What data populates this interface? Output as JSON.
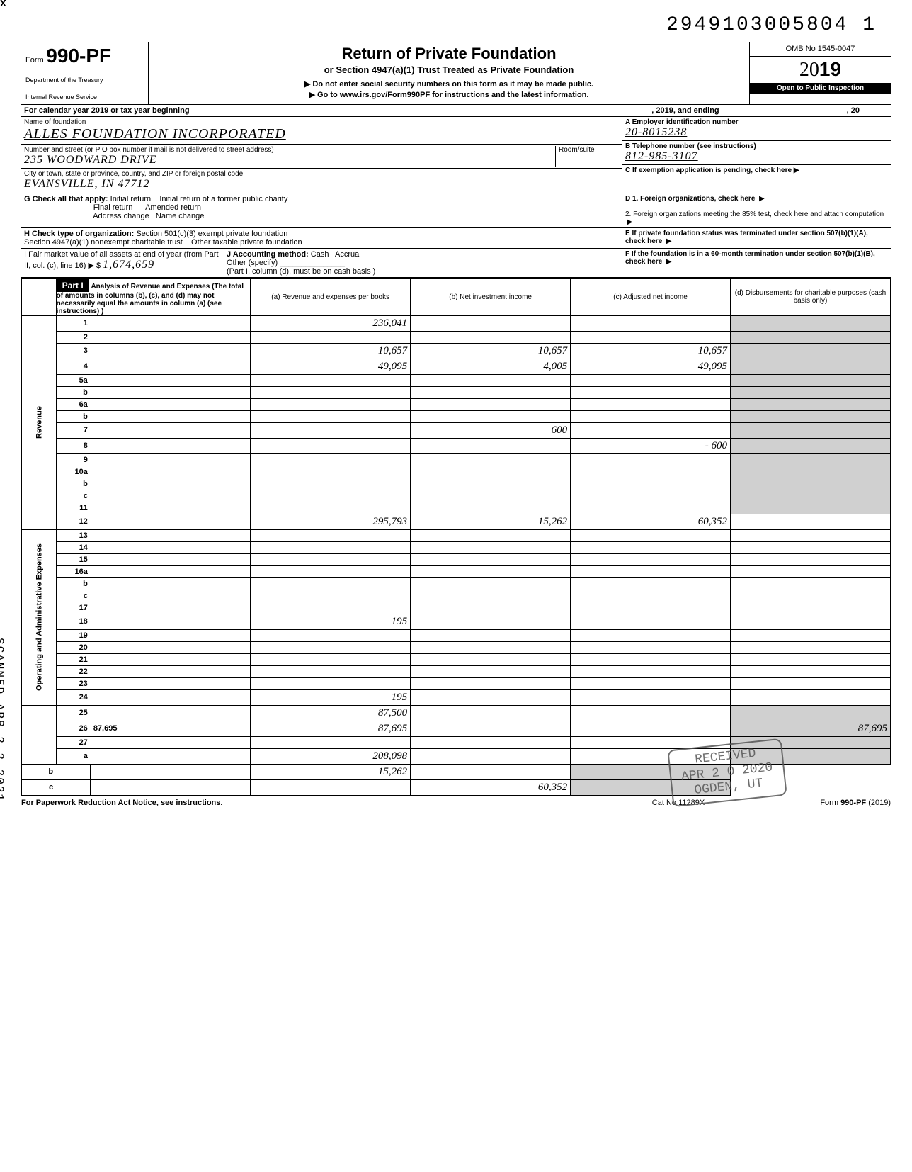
{
  "top_id": "2949103005804  1",
  "form": {
    "prefix": "Form",
    "number": "990-PF",
    "dept1": "Department of the Treasury",
    "dept2": "Internal Revenue Service"
  },
  "title": {
    "main": "Return of Private Foundation",
    "sub": "or Section 4947(a)(1) Trust Treated as Private Foundation",
    "instr1": "▶ Do not enter social security numbers on this form as it may be made public.",
    "instr2": "▶ Go to www.irs.gov/Form990PF for instructions and the latest information."
  },
  "right_head": {
    "omb": "OMB No 1545-0047",
    "year_prefix": "20",
    "year_bold": "19",
    "inspect": "Open to Public Inspection"
  },
  "cal": {
    "left": "For calendar year 2019 or tax year beginning",
    "mid": ", 2019, and ending",
    "right": ", 20"
  },
  "foundation": {
    "name_label": "Name of foundation",
    "name": "ALLES FOUNDATION INCORPORATED",
    "addr_label": "Number and street (or P O  box number if mail is not delivered to street address)",
    "room_label": "Room/suite",
    "addr": "235 WOODWARD DRIVE",
    "city_label": "City or town, state or province, country, and ZIP or foreign postal code",
    "city": "EVANSVILLE, IN  47712"
  },
  "boxA": {
    "label": "A  Employer identification number",
    "val": "20-8015238"
  },
  "boxB": {
    "label": "B  Telephone number (see instructions)",
    "val": "812-985-3107"
  },
  "boxC": {
    "label": "C  If exemption application is pending, check here ▶"
  },
  "boxD": {
    "d1": "D  1. Foreign organizations, check here",
    "d2": "2. Foreign organizations meeting the 85% test, check here and attach computation"
  },
  "boxE": {
    "label": "E  If private foundation status was terminated under section 507(b)(1)(A), check here"
  },
  "boxF": {
    "label": "F  If the foundation is in a 60-month termination under section 507(b)(1)(B), check here"
  },
  "rowG": {
    "label": "G  Check all that apply:",
    "opts": [
      "Initial return",
      "Initial return of a former public charity",
      "Final return",
      "Amended return",
      "Address change",
      "Name change"
    ]
  },
  "rowH": {
    "label": "H  Check type of organization:",
    "opt1": "Section 501(c)(3) exempt private foundation",
    "opt2": "Section 4947(a)(1) nonexempt charitable trust",
    "opt3": "Other taxable private foundation"
  },
  "rowI": {
    "l1": "I    Fair market value of all assets at end of year  (from Part II, col. (c), line 16) ▶  $",
    "val": "1,674,659",
    "j": "J   Accounting method:",
    "cash": "Cash",
    "accrual": "Accrual",
    "other": "Other (specify)",
    "note": "(Part I, column (d), must be on cash basis )"
  },
  "part1": {
    "label": "Part I",
    "head": "Analysis of Revenue and Expenses (The total of amounts in columns (b), (c), and (d) may not necessarily equal the amounts in column (a) (see instructions) )",
    "col_a": "(a) Revenue and expenses per books",
    "col_b": "(b) Net investment income",
    "col_c": "(c) Adjusted net income",
    "col_d": "(d) Disbursements for charitable purposes (cash basis only)"
  },
  "sections": {
    "revenue": "Revenue",
    "expenses": "Operating and Administrative Expenses"
  },
  "rows": [
    {
      "n": "1",
      "d": "",
      "a": "236,041",
      "b": "",
      "c": ""
    },
    {
      "n": "2",
      "d": "",
      "a": "",
      "b": "",
      "c": ""
    },
    {
      "n": "3",
      "d": "",
      "a": "10,657",
      "b": "10,657",
      "c": "10,657"
    },
    {
      "n": "4",
      "d": "",
      "a": "49,095",
      "b": "4,005",
      "c": "49,095"
    },
    {
      "n": "5a",
      "d": "",
      "a": "",
      "b": "",
      "c": ""
    },
    {
      "n": "b",
      "d": "",
      "a": "",
      "b": "",
      "c": ""
    },
    {
      "n": "6a",
      "d": "",
      "a": "",
      "b": "",
      "c": ""
    },
    {
      "n": "b",
      "d": "",
      "a": "",
      "b": "",
      "c": ""
    },
    {
      "n": "7",
      "d": "",
      "a": "",
      "b": "600",
      "c": ""
    },
    {
      "n": "8",
      "d": "",
      "a": "",
      "b": "",
      "c": "- 600"
    },
    {
      "n": "9",
      "d": "",
      "a": "",
      "b": "",
      "c": ""
    },
    {
      "n": "10a",
      "d": "",
      "a": "",
      "b": "",
      "c": ""
    },
    {
      "n": "b",
      "d": "",
      "a": "",
      "b": "",
      "c": ""
    },
    {
      "n": "c",
      "d": "",
      "a": "",
      "b": "",
      "c": ""
    },
    {
      "n": "11",
      "d": "",
      "a": "",
      "b": "",
      "c": ""
    },
    {
      "n": "12",
      "d": "",
      "a": "295,793",
      "b": "15,262",
      "c": "60,352",
      "bold": true
    },
    {
      "n": "13",
      "d": "",
      "a": "",
      "b": "",
      "c": ""
    },
    {
      "n": "14",
      "d": "",
      "a": "",
      "b": "",
      "c": ""
    },
    {
      "n": "15",
      "d": "",
      "a": "",
      "b": "",
      "c": ""
    },
    {
      "n": "16a",
      "d": "",
      "a": "",
      "b": "",
      "c": ""
    },
    {
      "n": "b",
      "d": "",
      "a": "",
      "b": "",
      "c": ""
    },
    {
      "n": "c",
      "d": "",
      "a": "",
      "b": "",
      "c": ""
    },
    {
      "n": "17",
      "d": "",
      "a": "",
      "b": "",
      "c": ""
    },
    {
      "n": "18",
      "d": "",
      "a": "195",
      "b": "",
      "c": ""
    },
    {
      "n": "19",
      "d": "",
      "a": "",
      "b": "",
      "c": ""
    },
    {
      "n": "20",
      "d": "",
      "a": "",
      "b": "",
      "c": ""
    },
    {
      "n": "21",
      "d": "",
      "a": "",
      "b": "",
      "c": ""
    },
    {
      "n": "22",
      "d": "",
      "a": "",
      "b": "",
      "c": ""
    },
    {
      "n": "23",
      "d": "",
      "a": "",
      "b": "",
      "c": ""
    },
    {
      "n": "24",
      "d": "",
      "a": "195",
      "b": "",
      "c": "",
      "bold": true
    },
    {
      "n": "25",
      "d": "",
      "a": "87,500",
      "b": "",
      "c": ""
    },
    {
      "n": "26",
      "d": "87,695",
      "a": "87,695",
      "b": "",
      "c": "",
      "bold": true
    },
    {
      "n": "27",
      "d": "",
      "a": "",
      "b": "",
      "c": ""
    },
    {
      "n": "a",
      "d": "",
      "a": "208,098",
      "b": "",
      "c": "",
      "bold": true
    },
    {
      "n": "b",
      "d": "",
      "a": "",
      "b": "15,262",
      "c": "",
      "bold": true
    },
    {
      "n": "c",
      "d": "",
      "a": "",
      "b": "",
      "c": "60,352",
      "bold": true
    }
  ],
  "footer": {
    "l": "For Paperwork Reduction Act Notice, see instructions.",
    "m": "Cat No  11289X",
    "r": "Form 990-PF (2019)"
  },
  "side_scan": "SCANNED APR 2 2 2021",
  "stamp": {
    "l1": "RECEIVED",
    "l2": "APR 2 0 2020",
    "l3": "OGDEN, UT"
  }
}
